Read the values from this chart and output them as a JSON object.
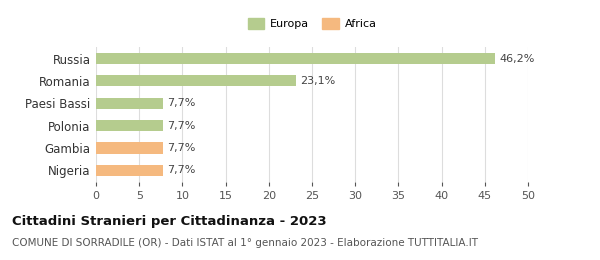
{
  "categories": [
    "Nigeria",
    "Gambia",
    "Polonia",
    "Paesi Bassi",
    "Romania",
    "Russia"
  ],
  "values": [
    7.7,
    7.7,
    7.7,
    7.7,
    23.1,
    46.2
  ],
  "colors": [
    "#f5b97f",
    "#f5b97f",
    "#b5cc8e",
    "#b5cc8e",
    "#b5cc8e",
    "#b5cc8e"
  ],
  "labels": [
    "7,7%",
    "7,7%",
    "7,7%",
    "7,7%",
    "23,1%",
    "46,2%"
  ],
  "legend": [
    {
      "label": "Europa",
      "color": "#b5cc8e"
    },
    {
      "label": "Africa",
      "color": "#f5b97f"
    }
  ],
  "xlim": [
    0,
    50
  ],
  "xticks": [
    0,
    5,
    10,
    15,
    20,
    25,
    30,
    35,
    40,
    45,
    50
  ],
  "title": "Cittadini Stranieri per Cittadinanza - 2023",
  "subtitle": "COMUNE DI SORRADILE (OR) - Dati ISTAT al 1° gennaio 2023 - Elaborazione TUTTITALIA.IT",
  "background_color": "#ffffff",
  "grid_color": "#dddddd",
  "bar_height": 0.5,
  "label_fontsize": 8,
  "tick_fontsize": 8,
  "title_fontsize": 9.5,
  "subtitle_fontsize": 7.5,
  "ytick_fontsize": 8.5
}
